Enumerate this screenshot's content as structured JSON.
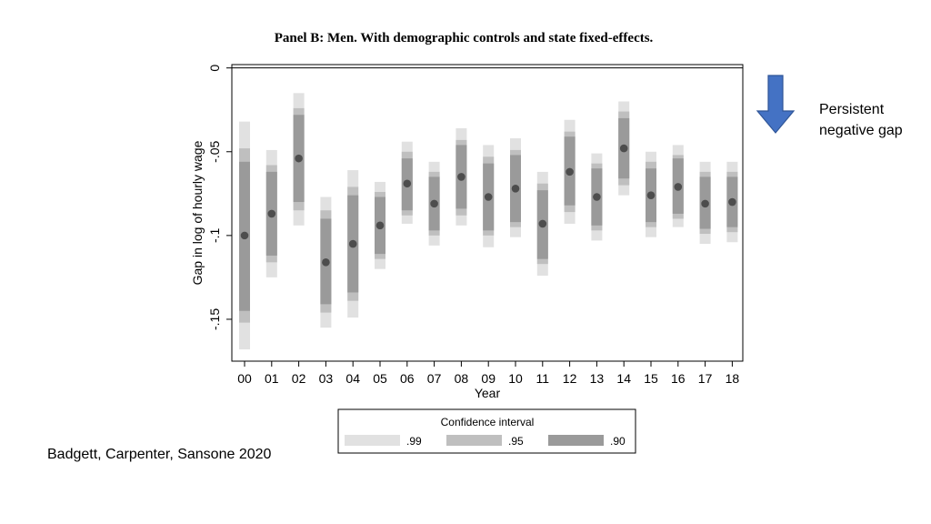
{
  "colors": {
    "ci99": "#e1e1e1",
    "ci95": "#bfbfbf",
    "ci90": "#9a9a9a",
    "point": "#4d4d4d",
    "arrow": "#4472c4",
    "arrow_stroke": "#2f5597"
  },
  "annotation": {
    "line1": "Persistent",
    "line2": "negative gap",
    "icon": "down-arrow-icon"
  },
  "citation": "Badgett, Carpenter, Sansone 2020",
  "chart_data": {
    "type": "scatter",
    "title": "Panel B: Men. With demographic controls and state fixed-effects.",
    "xlabel": "Year",
    "ylabel": "Gap in log of hourly wage",
    "categories": [
      "00",
      "01",
      "02",
      "03",
      "04",
      "05",
      "06",
      "07",
      "08",
      "09",
      "10",
      "11",
      "12",
      "13",
      "14",
      "15",
      "16",
      "17",
      "18"
    ],
    "estimates": [
      -0.1,
      -0.087,
      -0.054,
      -0.116,
      -0.105,
      -0.094,
      -0.069,
      -0.081,
      -0.065,
      -0.077,
      -0.072,
      -0.093,
      -0.062,
      -0.077,
      -0.048,
      -0.076,
      -0.071,
      -0.081,
      -0.08
    ],
    "ci99": [
      [
        -0.168,
        -0.032
      ],
      [
        -0.125,
        -0.049
      ],
      [
        -0.094,
        -0.015
      ],
      [
        -0.155,
        -0.077
      ],
      [
        -0.149,
        -0.061
      ],
      [
        -0.12,
        -0.068
      ],
      [
        -0.093,
        -0.044
      ],
      [
        -0.106,
        -0.056
      ],
      [
        -0.094,
        -0.036
      ],
      [
        -0.107,
        -0.046
      ],
      [
        -0.101,
        -0.042
      ],
      [
        -0.124,
        -0.062
      ],
      [
        -0.093,
        -0.031
      ],
      [
        -0.103,
        -0.051
      ],
      [
        -0.076,
        -0.02
      ],
      [
        -0.101,
        -0.05
      ],
      [
        -0.095,
        -0.046
      ],
      [
        -0.105,
        -0.056
      ],
      [
        -0.104,
        -0.056
      ]
    ],
    "ci95": [
      [
        -0.152,
        -0.048
      ],
      [
        -0.116,
        -0.058
      ],
      [
        -0.085,
        -0.024
      ],
      [
        -0.146,
        -0.085
      ],
      [
        -0.139,
        -0.071
      ],
      [
        -0.114,
        -0.074
      ],
      [
        -0.088,
        -0.05
      ],
      [
        -0.1,
        -0.062
      ],
      [
        -0.088,
        -0.043
      ],
      [
        -0.1,
        -0.053
      ],
      [
        -0.095,
        -0.049
      ],
      [
        -0.117,
        -0.069
      ],
      [
        -0.086,
        -0.038
      ],
      [
        -0.097,
        -0.057
      ],
      [
        -0.07,
        -0.026
      ],
      [
        -0.095,
        -0.056
      ],
      [
        -0.09,
        -0.052
      ],
      [
        -0.099,
        -0.062
      ],
      [
        -0.098,
        -0.062
      ]
    ],
    "ci90": [
      [
        -0.145,
        -0.056
      ],
      [
        -0.112,
        -0.062
      ],
      [
        -0.08,
        -0.028
      ],
      [
        -0.141,
        -0.09
      ],
      [
        -0.134,
        -0.076
      ],
      [
        -0.111,
        -0.077
      ],
      [
        -0.085,
        -0.054
      ],
      [
        -0.097,
        -0.065
      ],
      [
        -0.084,
        -0.046
      ],
      [
        -0.097,
        -0.057
      ],
      [
        -0.092,
        -0.052
      ],
      [
        -0.114,
        -0.073
      ],
      [
        -0.082,
        -0.041
      ],
      [
        -0.094,
        -0.06
      ],
      [
        -0.066,
        -0.03
      ],
      [
        -0.092,
        -0.06
      ],
      [
        -0.087,
        -0.054
      ],
      [
        -0.096,
        -0.065
      ],
      [
        -0.095,
        -0.065
      ]
    ],
    "ylim": [
      -0.175,
      0.002
    ],
    "yticks": [
      0,
      -0.05,
      -0.1,
      -0.15
    ],
    "ytick_labels": [
      "0",
      "-.05",
      "-.1",
      "-.15"
    ],
    "reference_line": 0,
    "grid": false,
    "legend": {
      "title": "Confidence interval",
      "placement": "bottom",
      "entries": [
        ".99",
        ".95",
        ".90"
      ]
    }
  }
}
